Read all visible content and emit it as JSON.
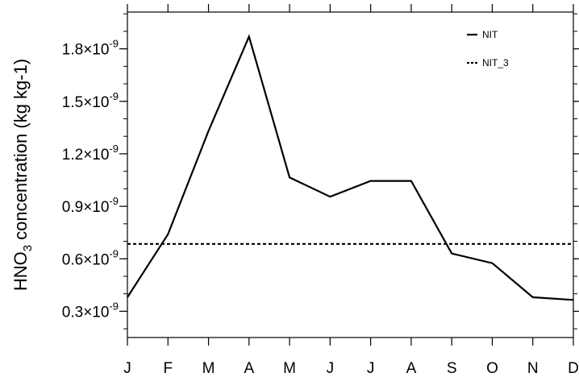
{
  "chart_data": {
    "type": "line",
    "ylabel_main": "HNO",
    "ylabel_sub": "3",
    "ylabel_rest": " concentration (kg kg-1)",
    "categories": [
      "J",
      "F",
      "M",
      "A",
      "M",
      "J",
      "J",
      "A",
      "S",
      "O",
      "N",
      "D"
    ],
    "ylim": [
      1.5e-10,
      2.01e-09
    ],
    "yticks": [
      {
        "value": 3e-10,
        "mant": "0.3",
        "exp": "-9"
      },
      {
        "value": 6e-10,
        "mant": "0.6",
        "exp": "-9"
      },
      {
        "value": 9e-10,
        "mant": "0.9",
        "exp": "-9"
      },
      {
        "value": 1.2e-09,
        "mant": "1.2",
        "exp": "-9"
      },
      {
        "value": 1.5e-09,
        "mant": "1.5",
        "exp": "-9"
      },
      {
        "value": 1.8e-09,
        "mant": "1.8",
        "exp": "-9"
      }
    ],
    "yminor_step": 1e-10,
    "times_sign": "×10",
    "series": [
      {
        "name": "NIT",
        "style": "solid",
        "color": "#000000",
        "values": [
          3.8e-10,
          7.4e-10,
          1.33e-09,
          1.87e-09,
          1.065e-09,
          9.55e-10,
          1.045e-09,
          1.045e-09,
          6.3e-10,
          5.75e-10,
          3.8e-10,
          3.65e-10
        ]
      },
      {
        "name": "NIT_3",
        "style": "dashed",
        "color": "#000000",
        "values": [
          6.85e-10,
          6.85e-10,
          6.85e-10,
          6.85e-10,
          6.85e-10,
          6.85e-10,
          6.85e-10,
          6.85e-10,
          6.85e-10,
          6.85e-10,
          6.85e-10,
          6.85e-10
        ]
      }
    ],
    "legend_position": "top-right",
    "grid": false
  }
}
